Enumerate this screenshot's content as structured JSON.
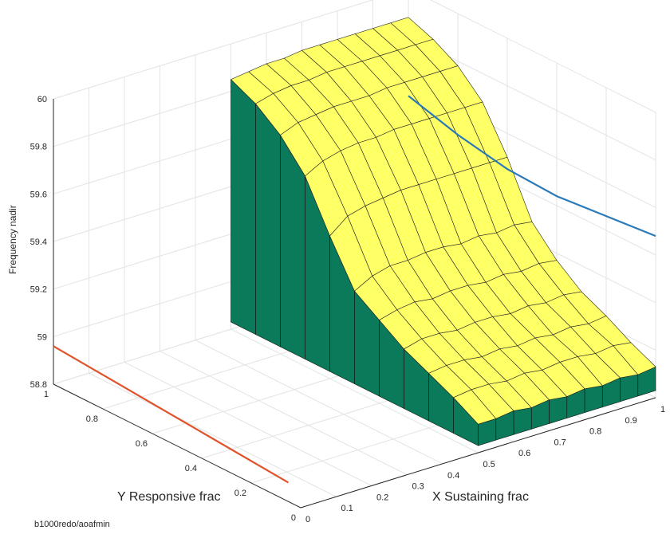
{
  "chart_data": {
    "type": "surface3d",
    "xlabel": "X Sustaining frac",
    "ylabel": "Y Responsive frac",
    "zlabel": "Frequency nadir",
    "xlim": [
      0,
      1
    ],
    "ylim": [
      0,
      1
    ],
    "zlim": [
      58.8,
      60
    ],
    "x_ticks": [
      "0",
      "0.1",
      "0.2",
      "0.3",
      "0.4",
      "0.5",
      "0.6",
      "0.7",
      "0.8",
      "0.9",
      "1"
    ],
    "y_ticks": [
      "0",
      "0.2",
      "0.4",
      "0.6",
      "0.8",
      "1"
    ],
    "z_ticks": [
      "58.8",
      "59",
      "59.2",
      "59.4",
      "59.6",
      "59.8",
      "60"
    ],
    "grid": true,
    "surface_color": "#ffff66",
    "floor_color": "#0a7a5a",
    "surface": {
      "x": [
        0.5,
        0.55,
        0.6,
        0.65,
        0.7,
        0.75,
        0.8,
        0.85,
        0.9,
        0.95,
        1.0
      ],
      "y": [
        0.0,
        0.1,
        0.2,
        0.3,
        0.4,
        0.5,
        0.6,
        0.7,
        0.8,
        0.9,
        1.0
      ],
      "z": [
        [
          58.92,
          58.92,
          58.93,
          58.92,
          58.93,
          58.92,
          58.93,
          58.92,
          58.93,
          58.92,
          58.93
        ],
        [
          58.98,
          58.99,
          58.99,
          58.98,
          58.99,
          58.98,
          58.99,
          58.99,
          58.98,
          58.99,
          58.98
        ],
        [
          59.03,
          59.04,
          59.04,
          59.03,
          59.04,
          59.03,
          59.04,
          59.03,
          59.04,
          59.03,
          59.04
        ],
        [
          59.08,
          59.1,
          59.1,
          59.09,
          59.1,
          59.1,
          59.09,
          59.1,
          59.09,
          59.1,
          59.09
        ],
        [
          59.15,
          59.17,
          59.18,
          59.17,
          59.18,
          59.18,
          59.17,
          59.18,
          59.17,
          59.18,
          59.17
        ],
        [
          59.22,
          59.26,
          59.28,
          59.28,
          59.29,
          59.29,
          59.28,
          59.29,
          59.28,
          59.29,
          59.28
        ],
        [
          59.4,
          59.46,
          59.48,
          59.49,
          59.5,
          59.5,
          59.5,
          59.5,
          59.5,
          59.5,
          59.5
        ],
        [
          59.6,
          59.64,
          59.66,
          59.67,
          59.67,
          59.68,
          59.68,
          59.68,
          59.68,
          59.68,
          59.68
        ],
        [
          59.72,
          59.75,
          59.76,
          59.77,
          59.77,
          59.77,
          59.78,
          59.78,
          59.78,
          59.78,
          59.78
        ],
        [
          59.8,
          59.82,
          59.83,
          59.83,
          59.84,
          59.84,
          59.84,
          59.84,
          59.84,
          59.84,
          59.84
        ],
        [
          59.85,
          59.86,
          59.87,
          59.87,
          59.88,
          59.88,
          59.88,
          59.88,
          59.88,
          59.88,
          59.88
        ]
      ]
    },
    "lines": [
      {
        "color": "#2a7ab9",
        "points": [
          [
            1.0,
            0.0,
            59.48
          ],
          [
            1.0,
            0.2,
            59.46
          ],
          [
            1.0,
            0.4,
            59.44
          ],
          [
            1.0,
            0.6,
            59.45
          ],
          [
            1.0,
            0.8,
            59.49
          ],
          [
            1.0,
            1.0,
            59.55
          ]
        ]
      },
      {
        "color": "#e0522a",
        "points": [
          [
            0.0,
            0.05,
            58.88
          ],
          [
            0.0,
            1.0,
            58.96
          ]
        ]
      }
    ]
  },
  "footer": "b1000redo/aoafmin"
}
